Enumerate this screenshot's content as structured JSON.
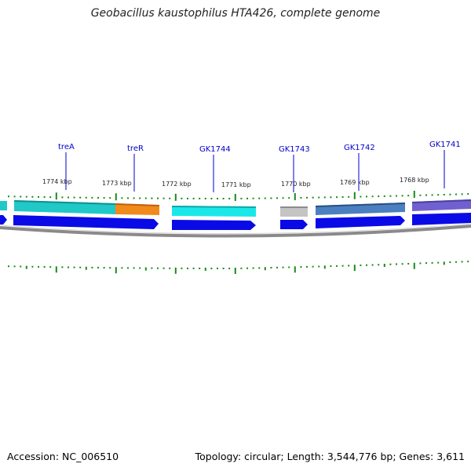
{
  "header": {
    "title": "Geobacillus kaustophilus HTA426, complete genome"
  },
  "footer": {
    "accession": "Accession: NC_006510",
    "summary": "Topology: circular; Length: 3,544,776 bp; Genes: 3,611"
  },
  "colors": {
    "arrow_blue": "#0a0ae6",
    "tick_green": "#1a8a1a",
    "label_blue": "#0000cc",
    "backbone_grey": "#888888"
  },
  "ruler": [
    {
      "label": "1774 kbp"
    },
    {
      "label": "1773 kbp"
    },
    {
      "label": "1772 kbp"
    },
    {
      "label": "1771 kbp"
    },
    {
      "label": "1770 kbp"
    },
    {
      "label": "1769 kbp"
    },
    {
      "label": "1768 kbp"
    }
  ],
  "genes": [
    {
      "name": "treA"
    },
    {
      "name": "treR"
    },
    {
      "name": "GK1744"
    },
    {
      "name": "GK1743"
    },
    {
      "name": "GK1742"
    },
    {
      "name": "GK1741"
    }
  ]
}
